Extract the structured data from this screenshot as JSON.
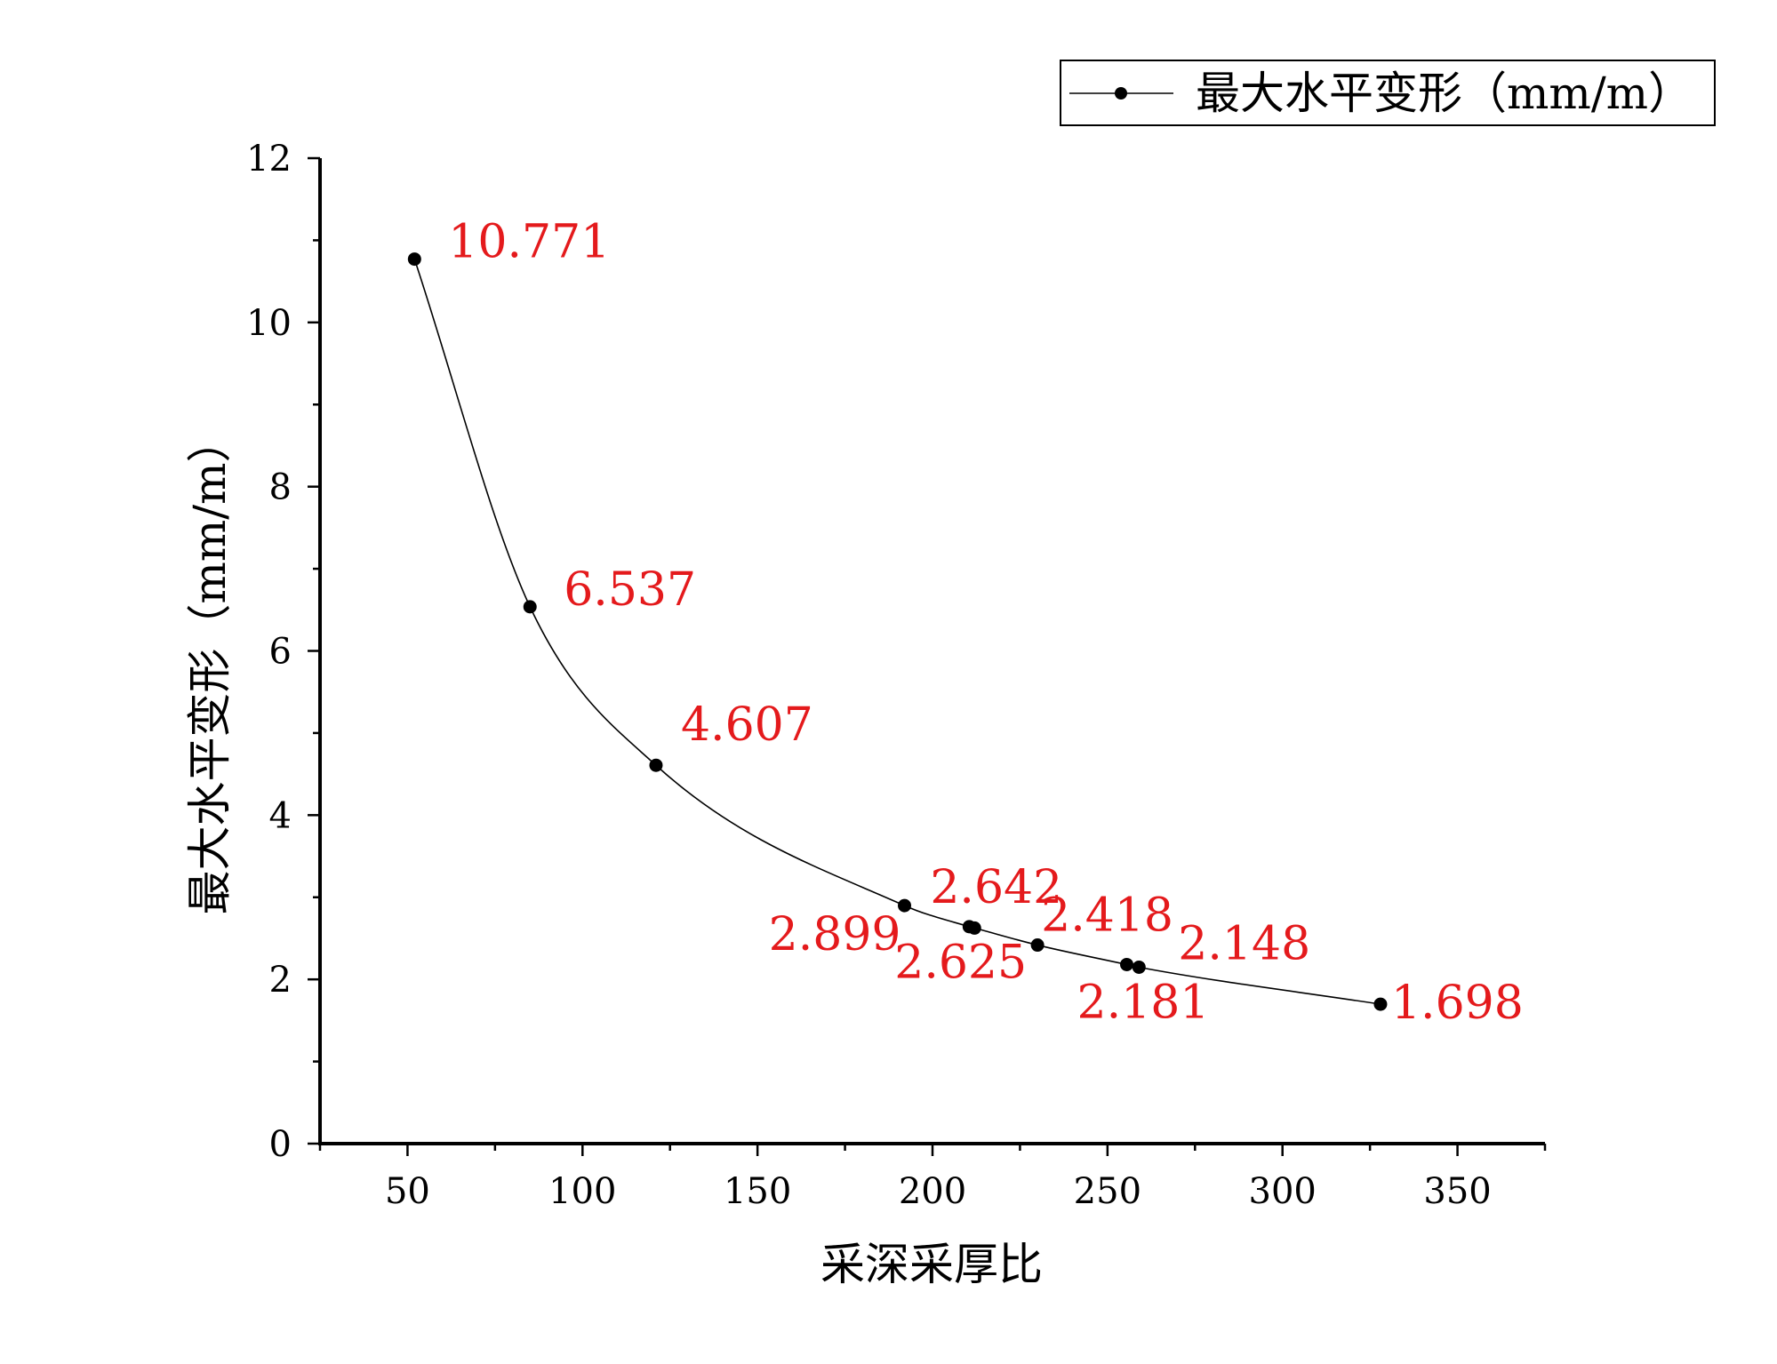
{
  "chart_data": {
    "type": "line",
    "title": "",
    "xlabel": "采深采厚比",
    "ylabel": "最大水平变形（mm/m）",
    "xlim": [
      25,
      375
    ],
    "ylim": [
      0,
      12
    ],
    "x_ticks": [
      "50",
      "100",
      "150",
      "200",
      "250",
      "300",
      "350"
    ],
    "y_ticks": [
      "0",
      "2",
      "4",
      "6",
      "8",
      "10",
      "12"
    ],
    "grid": false,
    "legend_position": "top-right",
    "series": [
      {
        "name": "最大水平变形（mm/m）",
        "color": "#000000",
        "marker": "circle",
        "line": "smooth",
        "points": [
          {
            "x": 52,
            "y": 10.771,
            "label": "10.771"
          },
          {
            "x": 85,
            "y": 6.537,
            "label": "6.537"
          },
          {
            "x": 121,
            "y": 4.607,
            "label": "4.607"
          },
          {
            "x": 192,
            "y": 2.899,
            "label": "2.899"
          },
          {
            "x": 210.5,
            "y": 2.642,
            "label": "2.642"
          },
          {
            "x": 212,
            "y": 2.625,
            "label": "2.625"
          },
          {
            "x": 230,
            "y": 2.418,
            "label": "2.418"
          },
          {
            "x": 255.5,
            "y": 2.181,
            "label": "2.181"
          },
          {
            "x": 259,
            "y": 2.148,
            "label": "2.148"
          },
          {
            "x": 328,
            "y": 1.698,
            "label": "1.698"
          }
        ]
      }
    ],
    "label_color": "#e41a1c"
  }
}
